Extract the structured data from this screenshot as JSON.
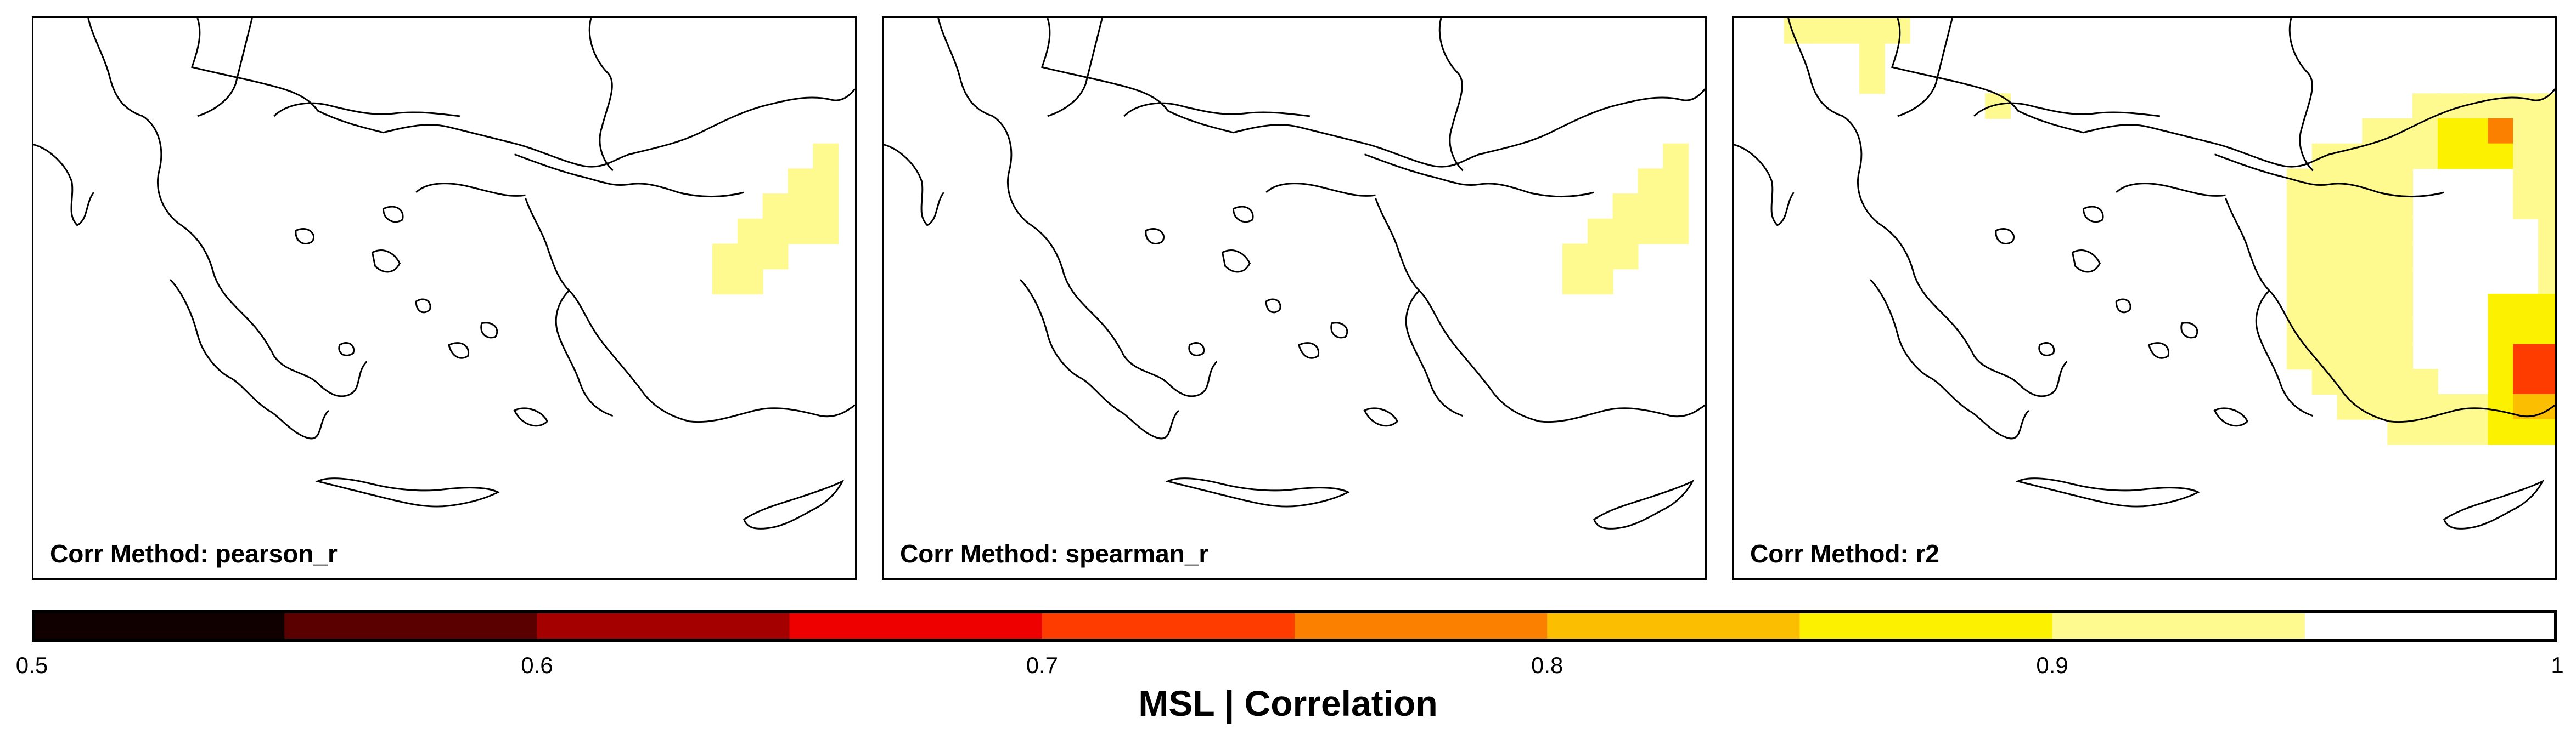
{
  "panels": [
    {
      "title": "Corr Method: pearson_r",
      "cells": [
        [
          0.9,
          0.94,
          [
            [
              1,
              0
            ],
            [
              2,
              0
            ],
            [
              3,
              0
            ]
          ]
        ],
        [
          0.92,
          0.96,
          [
            [
              1,
              0
            ],
            [
              2,
              0
            ],
            [
              3,
              0
            ],
            [
              4,
              0
            ]
          ]
        ],
        [
          0.94,
          0.98,
          [
            [
              1,
              0
            ],
            [
              2,
              0
            ],
            [
              3,
              0
            ],
            [
              4,
              0
            ],
            [
              5,
              0
            ]
          ]
        ]
      ]
    },
    {
      "title": "Corr Method: spearman_r",
      "cells": [
        [
          0.9,
          0.94,
          [
            [
              1,
              0
            ],
            [
              2,
              0
            ],
            [
              3,
              0
            ]
          ]
        ],
        [
          0.92,
          0.96,
          [
            [
              1,
              0
            ],
            [
              2,
              0
            ],
            [
              3,
              0
            ],
            [
              4,
              0
            ]
          ]
        ],
        [
          0.94,
          0.98,
          [
            [
              1,
              0
            ],
            [
              2,
              0
            ],
            [
              3,
              0
            ],
            [
              4,
              0
            ],
            [
              5,
              0
            ]
          ]
        ]
      ]
    },
    {
      "title": "Corr Method: r2",
      "cells": []
    }
  ],
  "colorbar": {
    "title": "MSL | Correlation",
    "min": 0.5,
    "max": 1.0,
    "ticks": [
      "0.5",
      "0.6",
      "0.7",
      "0.8",
      "0.9",
      "1"
    ],
    "tick_values": [
      0.5,
      0.6,
      0.7,
      0.8,
      0.9,
      1.0
    ],
    "colors": [
      "#100000",
      "#5a0000",
      "#a50000",
      "#ee0000",
      "#ff3c00",
      "#fb8000",
      "#fcbe00",
      "#fcf200",
      "#fefa90",
      "#ffffff"
    ]
  }
}
